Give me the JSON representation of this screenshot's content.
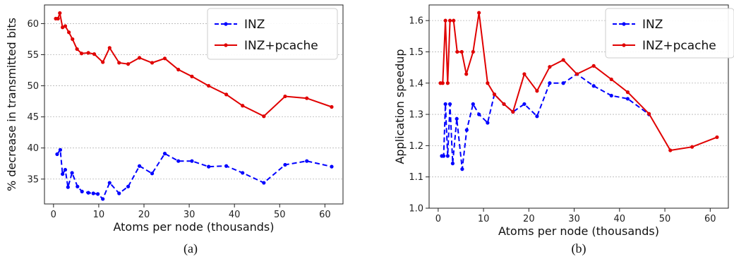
{
  "chart_data": [
    {
      "type": "line",
      "caption": "(a)",
      "xlabel": "Atoms per node (thousands)",
      "ylabel": "% decrease in transmitted bits",
      "xlim": [
        -2,
        64
      ],
      "ylim": [
        31,
        63
      ],
      "xticks": [
        0,
        10,
        20,
        30,
        40,
        50,
        60
      ],
      "yticks": [
        35,
        40,
        45,
        50,
        55,
        60
      ],
      "grid": "horizontal",
      "legend_position": "top-right",
      "series": [
        {
          "name": "INZ",
          "color": "#0000ff",
          "style": "dashed",
          "x": [
            0.8,
            1.5,
            2.0,
            2.6,
            3.2,
            4.1,
            5.3,
            6.3,
            7.7,
            8.8,
            9.8,
            10.9,
            12.4,
            14.5,
            16.5,
            19.0,
            21.8,
            24.6,
            27.6,
            30.6,
            34.3,
            38.2,
            41.8,
            46.5,
            51.2,
            56.0,
            61.5
          ],
          "y": [
            39.0,
            39.7,
            35.8,
            36.5,
            33.7,
            36.0,
            33.8,
            33.0,
            32.8,
            32.7,
            32.6,
            31.8,
            34.4,
            32.7,
            33.8,
            37.1,
            35.9,
            39.1,
            37.9,
            37.9,
            37.0,
            37.1,
            36.0,
            34.4,
            37.3,
            37.9,
            37.0
          ]
        },
        {
          "name": "INZ+pcache",
          "color": "#e00000",
          "style": "solid",
          "x": [
            0.5,
            1.0,
            1.4,
            2.0,
            2.6,
            3.4,
            4.2,
            5.2,
            6.2,
            7.7,
            9.0,
            10.9,
            12.4,
            14.5,
            16.5,
            19.0,
            21.8,
            24.6,
            27.6,
            30.6,
            34.3,
            38.2,
            41.8,
            46.5,
            51.2,
            56.0,
            61.5
          ],
          "y": [
            60.8,
            60.8,
            61.7,
            59.4,
            59.6,
            58.6,
            57.5,
            55.9,
            55.2,
            55.3,
            55.1,
            53.8,
            56.1,
            53.7,
            53.5,
            54.5,
            53.7,
            54.4,
            52.6,
            51.5,
            50.0,
            48.6,
            46.8,
            45.1,
            48.3,
            48.0,
            46.6
          ]
        }
      ]
    },
    {
      "type": "line",
      "caption": "(b)",
      "xlabel": "Atoms per node (thousands)",
      "ylabel": "Application speedup",
      "xlim": [
        -2,
        64
      ],
      "ylim": [
        1.0,
        1.65
      ],
      "xticks": [
        0,
        10,
        20,
        30,
        40,
        50,
        60
      ],
      "yticks": [
        1.0,
        1.1,
        1.2,
        1.3,
        1.4,
        1.5,
        1.6
      ],
      "ytick_labels": [
        "1.0",
        "1.1",
        "1.2",
        "1.3",
        "1.4",
        "1.5",
        "1.6"
      ],
      "grid": "horizontal",
      "legend_position": "top-right",
      "series": [
        {
          "name": "INZ",
          "color": "#0000ff",
          "style": "dashed",
          "x": [
            0.8,
            1.2,
            1.6,
            2.1,
            2.6,
            3.2,
            4.1,
            5.3,
            6.3,
            7.7,
            9.0,
            10.9,
            12.4,
            14.5,
            16.5,
            19.0,
            21.8,
            24.6,
            27.6,
            30.6,
            34.3,
            38.2,
            41.8,
            46.5
          ],
          "y": [
            1.167,
            1.167,
            1.333,
            1.167,
            1.333,
            1.143,
            1.286,
            1.125,
            1.25,
            1.333,
            1.3,
            1.273,
            1.364,
            1.333,
            1.308,
            1.333,
            1.294,
            1.4,
            1.4,
            1.429,
            1.391,
            1.36,
            1.35,
            1.3
          ]
        },
        {
          "name": "INZ+pcache",
          "color": "#e00000",
          "style": "solid",
          "x": [
            0.5,
            1.0,
            1.6,
            2.1,
            2.6,
            3.4,
            4.2,
            5.2,
            6.2,
            7.7,
            9.0,
            10.9,
            12.4,
            14.5,
            16.5,
            19.0,
            21.8,
            24.6,
            27.6,
            30.6,
            34.3,
            38.2,
            41.8,
            46.5,
            51.2,
            56.0,
            61.5
          ],
          "y": [
            1.4,
            1.4,
            1.6,
            1.4,
            1.6,
            1.6,
            1.5,
            1.5,
            1.429,
            1.5,
            1.625,
            1.4,
            1.364,
            1.333,
            1.308,
            1.429,
            1.375,
            1.452,
            1.474,
            1.429,
            1.455,
            1.412,
            1.371,
            1.302,
            1.185,
            1.196,
            1.227
          ]
        }
      ]
    }
  ]
}
